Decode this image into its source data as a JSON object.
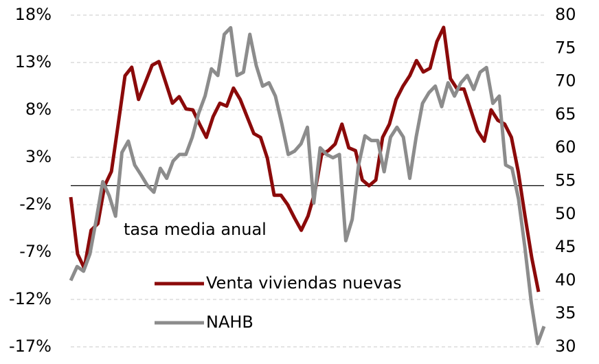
{
  "chart_data": {
    "type": "line",
    "annotation": "tasa media anual",
    "ylim": [
      -17,
      18
    ],
    "yticks": [
      {
        "value": -17,
        "label": "-17%"
      },
      {
        "value": -12,
        "label": "-12%"
      },
      {
        "value": -7,
        "label": "-7%"
      },
      {
        "value": -2,
        "label": "-2%"
      },
      {
        "value": 3,
        "label": "3%"
      },
      {
        "value": 8,
        "label": "8%"
      },
      {
        "value": 13,
        "label": "13%"
      },
      {
        "value": 18,
        "label": "18%"
      }
    ],
    "y2lim": [
      30,
      80
    ],
    "y2ticks": [
      30,
      35,
      40,
      45,
      50,
      55,
      60,
      65,
      70,
      75,
      80
    ],
    "grid": true,
    "series": [
      {
        "name": "Venta viviendas nuevas",
        "color": "#8b0a0a",
        "axis": "y",
        "values": [
          -1.2,
          -7.2,
          -8.7,
          -4.7,
          -4,
          0,
          1.5,
          6.5,
          11.6,
          12.5,
          9.1,
          10.9,
          12.7,
          13.1,
          10.9,
          8.7,
          9.4,
          8.1,
          8,
          6.5,
          5.1,
          7.3,
          8.7,
          8.4,
          10.3,
          9.1,
          7.3,
          5.5,
          5.1,
          2.9,
          -1,
          -1,
          -2,
          -3.4,
          -4.7,
          -3.2,
          -0.7,
          3.3,
          3.7,
          4.4,
          6.5,
          4,
          3.7,
          0.6,
          0,
          0.6,
          5.1,
          6.5,
          9.1,
          10.5,
          11.6,
          13.2,
          12,
          12.4,
          15.2,
          16.7,
          11.3,
          10.2,
          10.2,
          8,
          5.8,
          4.7,
          8,
          6.9,
          6.5,
          5.1,
          1.5,
          -3.2,
          -7.6,
          -11.2
        ]
      },
      {
        "name": "NAHB",
        "color": "#8c8c8c",
        "axis": "y2",
        "values": [
          40,
          42.1,
          41.4,
          44,
          49.2,
          54.9,
          52.8,
          49.7,
          59.3,
          61,
          57.4,
          55.9,
          54.3,
          53.3,
          56.9,
          55.4,
          58,
          59,
          59,
          61.6,
          65.2,
          67.8,
          71.9,
          70.9,
          77.1,
          78.1,
          70.9,
          71.4,
          77.1,
          72.4,
          69.3,
          69.8,
          67.8,
          63.6,
          59,
          59.5,
          60.6,
          63.1,
          51.7,
          60,
          59,
          58.5,
          59,
          46,
          49.2,
          57.4,
          61.8,
          61.1,
          61.1,
          56.4,
          61.6,
          63.1,
          61.6,
          55.4,
          61.6,
          66.7,
          68.3,
          69.3,
          66.2,
          69.8,
          67.8,
          69.8,
          70.9,
          68.8,
          71.4,
          72.1,
          66.7,
          67.8,
          57.4,
          56.9,
          52.3,
          45,
          36.7,
          30.5,
          33.1
        ]
      }
    ]
  }
}
